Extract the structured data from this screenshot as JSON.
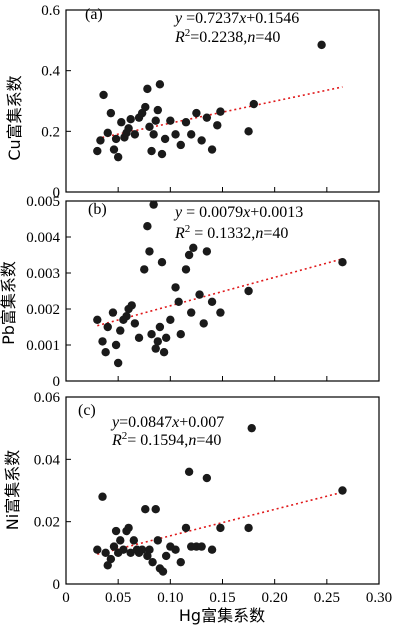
{
  "chart_data": [
    {
      "type": "scatter",
      "panel_label": "(a)",
      "ylabel": "Cu富集系数",
      "xlabel": "",
      "xlim": [
        0,
        0.3
      ],
      "ylim": [
        0,
        0.6
      ],
      "xticks": [],
      "yticks": [
        "0",
        "0.2",
        "0.4",
        "0.6"
      ],
      "equation": "y = 0.7237x + 0.1546",
      "stats": "R² = 0.2238, n = 40",
      "eq_parts": {
        "y": "y",
        "eq_mid": " =0.7237",
        "x": "x",
        "eq_end": "+0.1546",
        "R": "R",
        "two": "2",
        "r2_val": "=0.2238,",
        "n": "n",
        "n_val": "=40"
      },
      "trendline": {
        "slope": 0.7237,
        "intercept": 0.1546,
        "x_range": [
          0.03,
          0.265
        ]
      },
      "points": [
        [
          0.03,
          0.135
        ],
        [
          0.033,
          0.17
        ],
        [
          0.036,
          0.32
        ],
        [
          0.04,
          0.195
        ],
        [
          0.043,
          0.26
        ],
        [
          0.046,
          0.14
        ],
        [
          0.048,
          0.175
        ],
        [
          0.05,
          0.115
        ],
        [
          0.053,
          0.23
        ],
        [
          0.056,
          0.18
        ],
        [
          0.058,
          0.195
        ],
        [
          0.06,
          0.21
        ],
        [
          0.062,
          0.24
        ],
        [
          0.066,
          0.19
        ],
        [
          0.07,
          0.245
        ],
        [
          0.073,
          0.26
        ],
        [
          0.076,
          0.28
        ],
        [
          0.078,
          0.34
        ],
        [
          0.08,
          0.215
        ],
        [
          0.082,
          0.135
        ],
        [
          0.084,
          0.19
        ],
        [
          0.086,
          0.235
        ],
        [
          0.088,
          0.27
        ],
        [
          0.09,
          0.355
        ],
        [
          0.092,
          0.125
        ],
        [
          0.095,
          0.175
        ],
        [
          0.1,
          0.235
        ],
        [
          0.105,
          0.19
        ],
        [
          0.11,
          0.155
        ],
        [
          0.115,
          0.23
        ],
        [
          0.12,
          0.19
        ],
        [
          0.125,
          0.26
        ],
        [
          0.13,
          0.17
        ],
        [
          0.135,
          0.245
        ],
        [
          0.14,
          0.14
        ],
        [
          0.145,
          0.22
        ],
        [
          0.148,
          0.265
        ],
        [
          0.175,
          0.2
        ],
        [
          0.18,
          0.29
        ],
        [
          0.245,
          0.485
        ]
      ]
    },
    {
      "type": "scatter",
      "panel_label": "(b)",
      "ylabel": "Pb富集系数",
      "xlabel": "",
      "xlim": [
        0,
        0.3
      ],
      "ylim": [
        0,
        0.005
      ],
      "xticks": [],
      "yticks": [
        "0",
        "0.001",
        "0.002",
        "0.003",
        "0.004",
        "0.005"
      ],
      "equation": "y = 0.0079x + 0.0013",
      "stats": "R² = 0.1332, n = 40",
      "eq_parts": {
        "y": "y",
        "eq_mid": " = 0.0079",
        "x": "x",
        "eq_end": "+0.0013",
        "R": "R",
        "two": "2",
        "r2_val": " = 0.1332,",
        "n": "n",
        "n_val": "=40"
      },
      "trendline": {
        "slope": 0.0079,
        "intercept": 0.0013,
        "x_range": [
          0.03,
          0.265
        ]
      },
      "points": [
        [
          0.03,
          0.0017
        ],
        [
          0.035,
          0.0011
        ],
        [
          0.038,
          0.0008
        ],
        [
          0.04,
          0.0015
        ],
        [
          0.045,
          0.0019
        ],
        [
          0.048,
          0.001
        ],
        [
          0.05,
          0.0005
        ],
        [
          0.052,
          0.0014
        ],
        [
          0.055,
          0.0017
        ],
        [
          0.058,
          0.0018
        ],
        [
          0.06,
          0.002
        ],
        [
          0.063,
          0.0021
        ],
        [
          0.066,
          0.0016
        ],
        [
          0.07,
          0.0012
        ],
        [
          0.075,
          0.0031
        ],
        [
          0.078,
          0.0043
        ],
        [
          0.08,
          0.0036
        ],
        [
          0.082,
          0.0013
        ],
        [
          0.084,
          0.0049
        ],
        [
          0.086,
          0.0009
        ],
        [
          0.088,
          0.0011
        ],
        [
          0.09,
          0.0015
        ],
        [
          0.092,
          0.0033
        ],
        [
          0.094,
          0.0008
        ],
        [
          0.096,
          0.0012
        ],
        [
          0.1,
          0.0017
        ],
        [
          0.105,
          0.0026
        ],
        [
          0.108,
          0.0022
        ],
        [
          0.11,
          0.0013
        ],
        [
          0.115,
          0.0031
        ],
        [
          0.118,
          0.0035
        ],
        [
          0.12,
          0.0019
        ],
        [
          0.122,
          0.0037
        ],
        [
          0.128,
          0.0024
        ],
        [
          0.132,
          0.0016
        ],
        [
          0.135,
          0.0036
        ],
        [
          0.14,
          0.0022
        ],
        [
          0.148,
          0.0019
        ],
        [
          0.175,
          0.0025
        ],
        [
          0.265,
          0.0033
        ]
      ]
    },
    {
      "type": "scatter",
      "panel_label": "(c)",
      "ylabel": "Ni富集系数",
      "xlabel": "Hg富集系数",
      "xlim": [
        0,
        0.3
      ],
      "ylim": [
        0,
        0.06
      ],
      "xticks": [
        "0",
        "0.05",
        "0.10",
        "0.15",
        "0.20",
        "0.25",
        "0.30"
      ],
      "yticks": [
        "0",
        "0.02",
        "0.04",
        "0.06"
      ],
      "equation": "y = 0.0847x + 0.007",
      "stats": "R² = 0.1594, n = 40",
      "eq_parts": {
        "y": "y",
        "eq_mid": "=0.0847",
        "x": "x",
        "eq_end": "+0.007",
        "R": "R",
        "two": "2",
        "r2_val": "= 0.1594,",
        "n": "n",
        "n_val": "=40"
      },
      "trendline": {
        "slope": 0.0847,
        "intercept": 0.007,
        "x_range": [
          0.03,
          0.265
        ]
      },
      "points": [
        [
          0.03,
          0.011
        ],
        [
          0.035,
          0.028
        ],
        [
          0.038,
          0.01
        ],
        [
          0.04,
          0.006
        ],
        [
          0.043,
          0.008
        ],
        [
          0.046,
          0.012
        ],
        [
          0.048,
          0.017
        ],
        [
          0.05,
          0.01
        ],
        [
          0.052,
          0.014
        ],
        [
          0.055,
          0.011
        ],
        [
          0.058,
          0.017
        ],
        [
          0.06,
          0.018
        ],
        [
          0.062,
          0.01
        ],
        [
          0.065,
          0.014
        ],
        [
          0.068,
          0.011
        ],
        [
          0.07,
          0.01
        ],
        [
          0.073,
          0.011
        ],
        [
          0.076,
          0.024
        ],
        [
          0.078,
          0.009
        ],
        [
          0.08,
          0.011
        ],
        [
          0.083,
          0.007
        ],
        [
          0.086,
          0.024
        ],
        [
          0.088,
          0.014
        ],
        [
          0.09,
          0.005
        ],
        [
          0.093,
          0.004
        ],
        [
          0.096,
          0.009
        ],
        [
          0.1,
          0.012
        ],
        [
          0.105,
          0.011
        ],
        [
          0.11,
          0.007
        ],
        [
          0.115,
          0.018
        ],
        [
          0.118,
          0.036
        ],
        [
          0.12,
          0.012
        ],
        [
          0.125,
          0.012
        ],
        [
          0.13,
          0.012
        ],
        [
          0.135,
          0.034
        ],
        [
          0.14,
          0.011
        ],
        [
          0.148,
          0.018
        ],
        [
          0.175,
          0.018
        ],
        [
          0.178,
          0.05
        ],
        [
          0.265,
          0.03
        ]
      ]
    }
  ],
  "colors": {
    "points": "#1a1a1a",
    "trendline": "#e0191b",
    "axis": "#000000"
  }
}
